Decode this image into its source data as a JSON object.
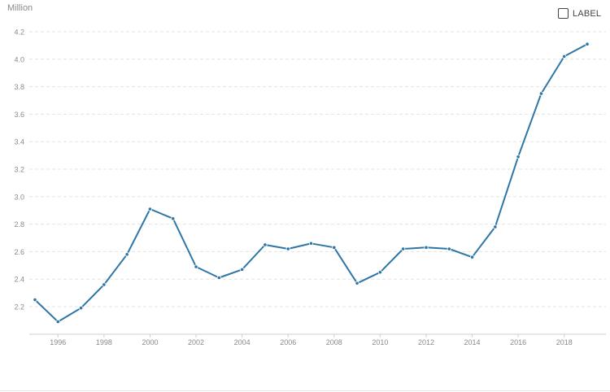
{
  "unit_label": "Million",
  "label_toggle": {
    "text": "LABEL",
    "checked": false
  },
  "colors": {
    "line": "#2f76a6",
    "grid": "#e3e3e3",
    "tick_text": "#8a8a8a"
  },
  "chart_data": {
    "type": "line",
    "title": "",
    "xlabel": "",
    "ylabel": "Million",
    "ylim": [
      2.08,
      4.25
    ],
    "xlim": [
      1995,
      2019
    ],
    "yticks": [
      2.2,
      2.4,
      2.6,
      2.8,
      3.0,
      3.2,
      3.4,
      3.6,
      3.8,
      4.0,
      4.2
    ],
    "ytick_labels": [
      "2.2",
      "2.4",
      "2.6",
      "2.8",
      "3.0",
      "3.2",
      "3.4",
      "3.6",
      "3.8",
      "4.0",
      "4.2"
    ],
    "xticks": [
      1996,
      1998,
      2000,
      2002,
      2004,
      2006,
      2008,
      2010,
      2012,
      2014,
      2016,
      2018
    ],
    "xtick_labels": [
      "1996",
      "1998",
      "2000",
      "2002",
      "2004",
      "2006",
      "2008",
      "2010",
      "2012",
      "2014",
      "2016",
      "2018"
    ],
    "grid": true,
    "series": [
      {
        "x": [
          1995,
          1996,
          1997,
          1998,
          1999,
          2000,
          2001,
          2002,
          2003,
          2004,
          2005,
          2006,
          2007,
          2008,
          2009,
          2010,
          2011,
          2012,
          2013,
          2014,
          2015,
          2016,
          2017,
          2018,
          2019
        ],
        "values": [
          2.25,
          2.09,
          2.19,
          2.36,
          2.58,
          2.91,
          2.84,
          2.49,
          2.41,
          2.47,
          2.65,
          2.62,
          2.66,
          2.63,
          2.37,
          2.45,
          2.62,
          2.63,
          2.62,
          2.56,
          2.78,
          3.29,
          3.75,
          4.02,
          4.11
        ]
      }
    ]
  }
}
